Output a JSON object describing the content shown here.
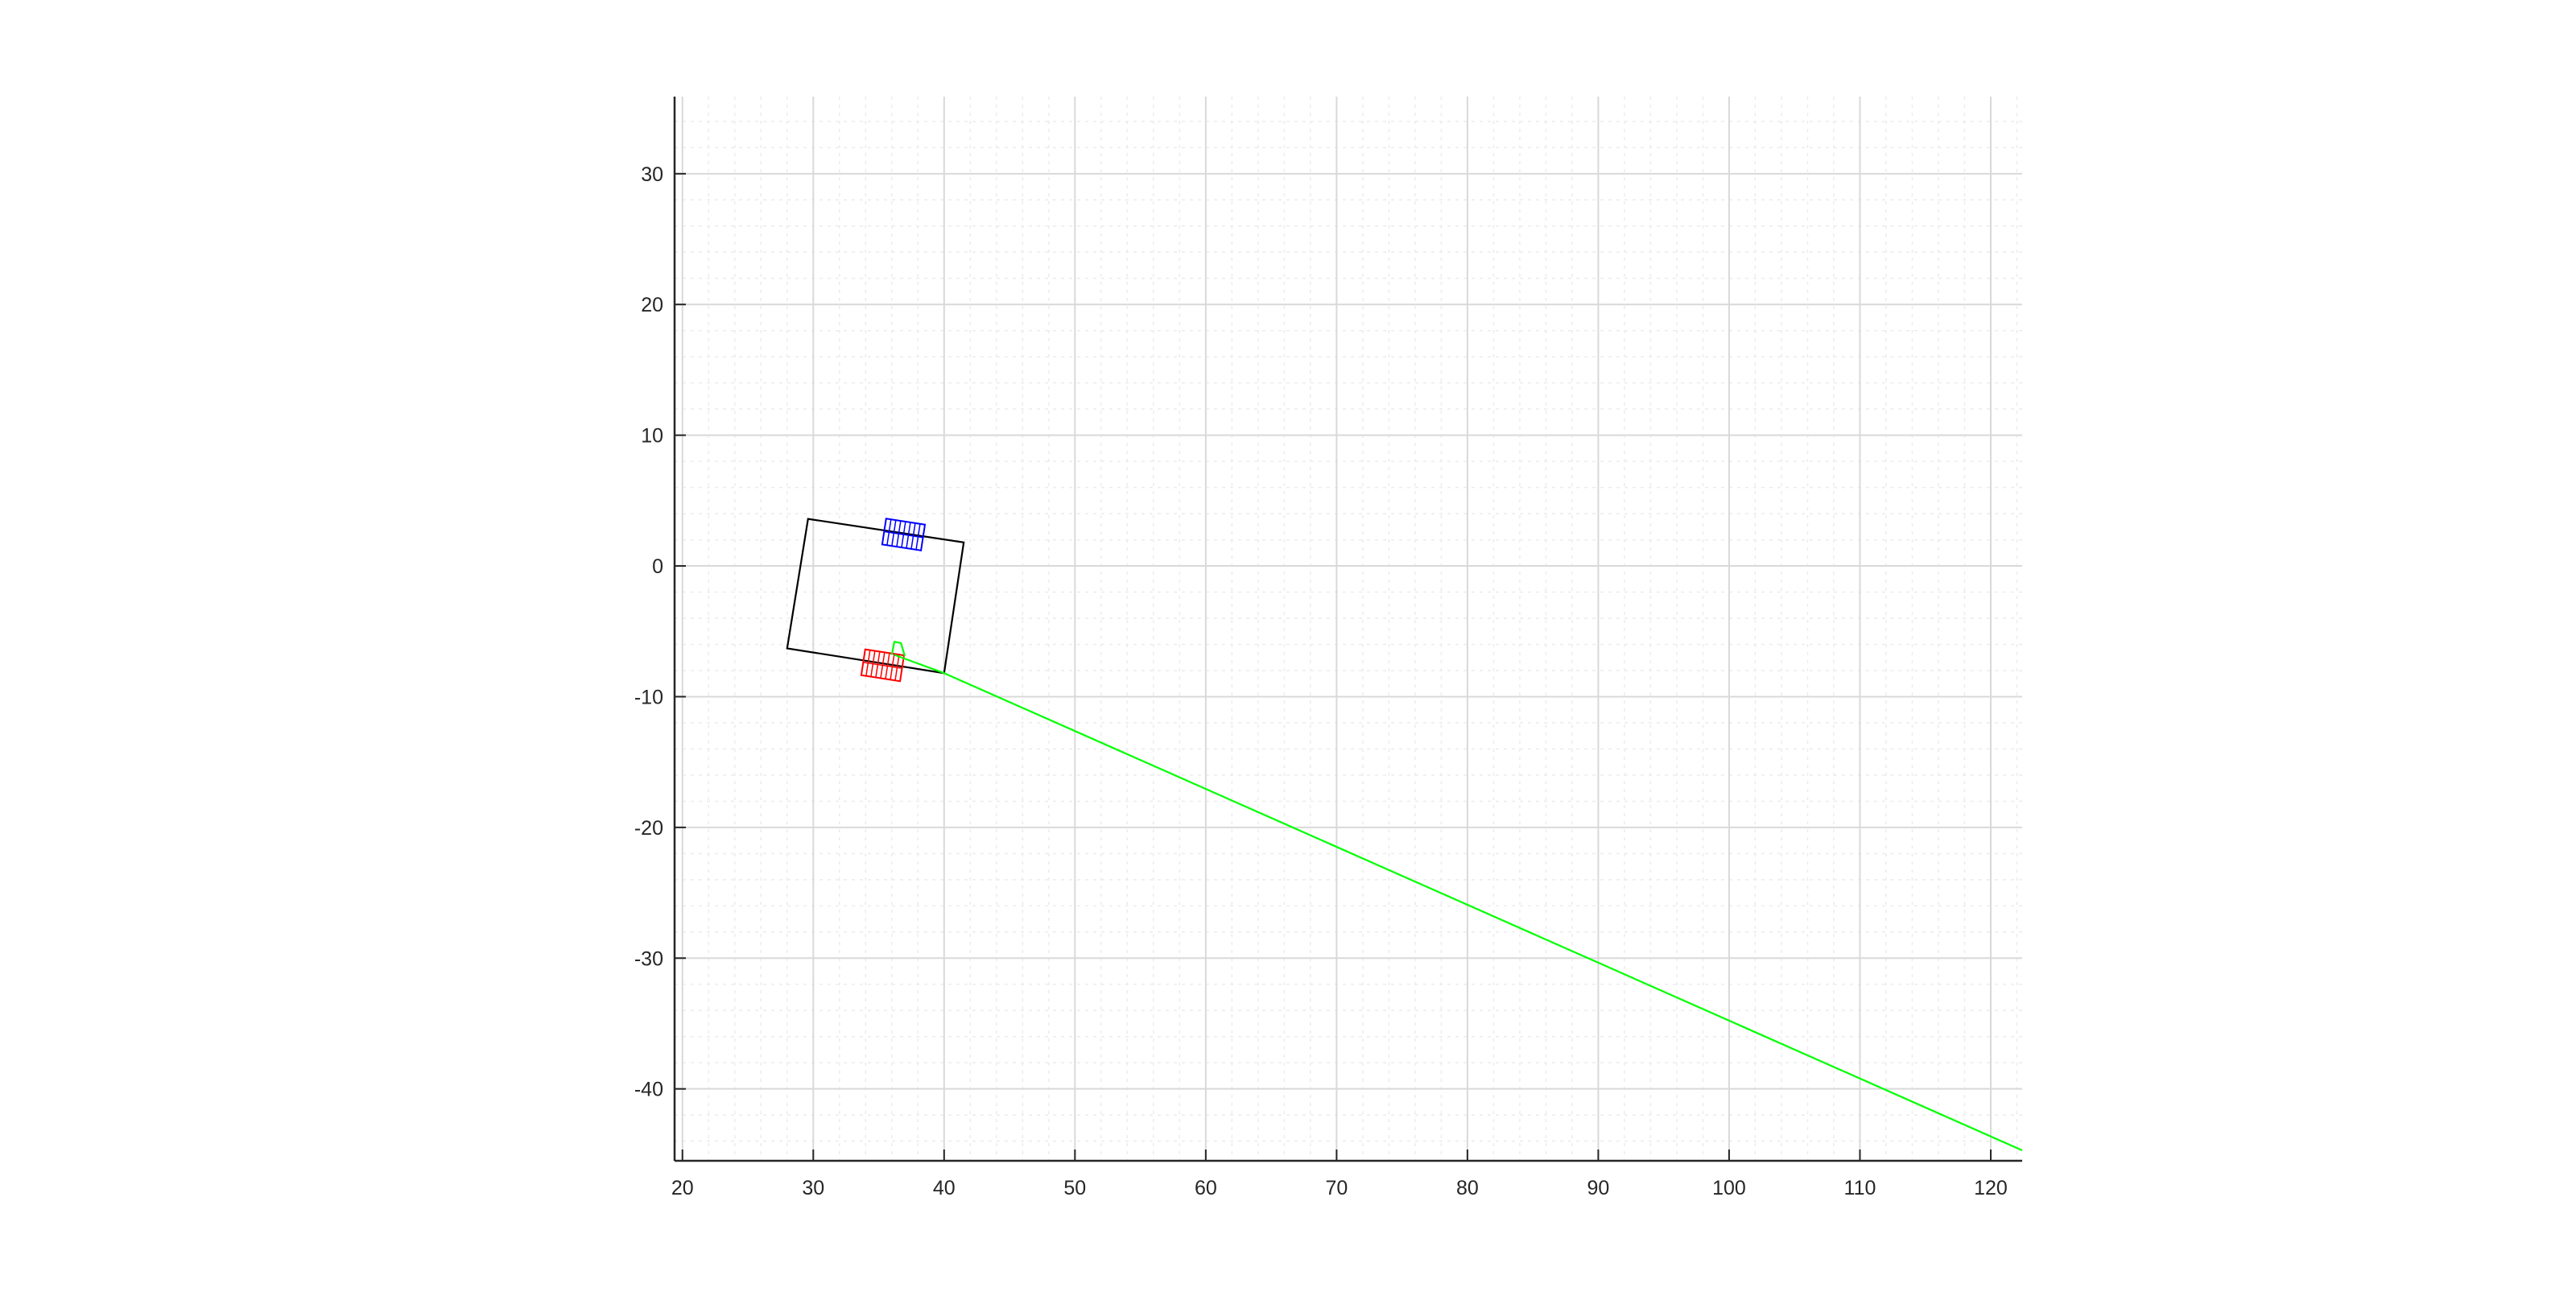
{
  "chart_data": {
    "type": "line",
    "title": "",
    "xlabel": "",
    "ylabel": "",
    "xlim": [
      19.4,
      122.4
    ],
    "ylim": [
      -45.5,
      35.9
    ],
    "x_ticks": [
      20,
      30,
      40,
      50,
      60,
      70,
      80,
      90,
      100,
      110,
      120
    ],
    "y_ticks": [
      -40,
      -30,
      -20,
      -10,
      0,
      10,
      20,
      30
    ],
    "x_tick_labels": [
      "20",
      "30",
      "40",
      "50",
      "60",
      "70",
      "80",
      "90",
      "100",
      "110",
      "120"
    ],
    "y_tick_labels": [
      "-40",
      "-30",
      "-20",
      "-10",
      "0",
      "10",
      "20",
      "30"
    ],
    "grid": true,
    "minor_grid": true,
    "box": false,
    "series": [
      {
        "kind": "polygon",
        "color": "#000000",
        "points": [
          [
            29.6,
            3.6
          ],
          [
            41.5,
            1.8
          ],
          [
            40.0,
            -8.2
          ],
          [
            28.0,
            -6.3
          ]
        ]
      },
      {
        "kind": "grid-rect",
        "color": "#0000ff",
        "center": [
          36.9,
          2.4
        ],
        "length": 3.0,
        "width": 2.0,
        "angle_deg": -8.7,
        "divisions": 8
      },
      {
        "kind": "grid-rect",
        "color": "#ff0000",
        "center": [
          35.3,
          -7.6
        ],
        "length": 3.0,
        "width": 2.0,
        "angle_deg": -8.7,
        "divisions": 8
      },
      {
        "kind": "line",
        "color": "#00ff00",
        "points": [
          [
            36.2,
            -6.8
          ],
          [
            40.0,
            -8.2
          ],
          [
            122.4,
            -44.7
          ]
        ]
      },
      {
        "kind": "line",
        "color": "#00ff00",
        "points": [
          [
            36.0,
            -6.8
          ],
          [
            36.2,
            -5.8
          ],
          [
            36.7,
            -5.9
          ],
          [
            37.0,
            -6.9
          ]
        ]
      }
    ]
  }
}
